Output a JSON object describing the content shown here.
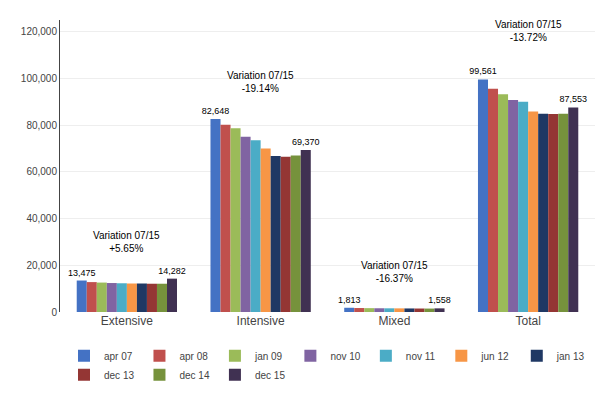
{
  "chart_data": {
    "type": "bar",
    "categories": [
      "Extensive",
      "Intensive",
      "Mixed",
      "Total"
    ],
    "series": [
      {
        "name": "apr 07",
        "color": "#4472C4",
        "values": [
          13475,
          82648,
          1813,
          99561
        ],
        "data_labels": true,
        "value_labels": [
          "13,475",
          "82,648",
          "1,813",
          "99,561"
        ]
      },
      {
        "name": "apr 08",
        "color": "#C0504D",
        "values": [
          12800,
          80200,
          1700,
          95600
        ]
      },
      {
        "name": "jan 09",
        "color": "#9BBB59",
        "values": [
          12600,
          78700,
          1650,
          93200
        ]
      },
      {
        "name": "nov 10",
        "color": "#8064A2",
        "values": [
          12400,
          75000,
          1600,
          90700
        ]
      },
      {
        "name": "nov 11",
        "color": "#4BACC6",
        "values": [
          12300,
          73500,
          1580,
          90000
        ]
      },
      {
        "name": "jun 12",
        "color": "#F79646",
        "values": [
          12200,
          70000,
          1560,
          85800
        ]
      },
      {
        "name": "jan 13",
        "color": "#1F3864",
        "values": [
          12200,
          66800,
          1520,
          84900
        ]
      },
      {
        "name": "dec 13",
        "color": "#943634",
        "values": [
          12100,
          66500,
          1490,
          84800
        ]
      },
      {
        "name": "dec 14",
        "color": "#76923C",
        "values": [
          12100,
          67000,
          1470,
          84900
        ]
      },
      {
        "name": "dec 15",
        "color": "#403152",
        "values": [
          14282,
          69370,
          1558,
          87553
        ],
        "data_labels": true,
        "value_labels": [
          "14,282",
          "69,370",
          "1,558",
          "87,553"
        ]
      }
    ],
    "annotations": [
      {
        "text": "Variation 07/15\n+5.65%",
        "category": "Extensive",
        "y": 19500
      },
      {
        "text": "Variation 07/15\n-19.14%",
        "category": "Intensive",
        "y": 88000
      },
      {
        "text": "Variation 07/15\n-16.37%",
        "category": "Mixed",
        "y": 7000
      },
      {
        "text": "Variation 07/15\n-13.72%",
        "category": "Total",
        "y": 110000
      }
    ],
    "ylim": [
      0,
      125000
    ],
    "yticks": [
      0,
      {
        "value": 20000,
        "label": "20,000"
      },
      {
        "value": 40000,
        "label": "40,000"
      },
      {
        "value": 60000,
        "label": "60,000"
      },
      {
        "value": 80000,
        "label": "80,000"
      },
      {
        "value": 100000,
        "label": "100,000"
      },
      {
        "value": 120000,
        "label": "120,000"
      }
    ],
    "grid": true,
    "legend": "bottom"
  }
}
